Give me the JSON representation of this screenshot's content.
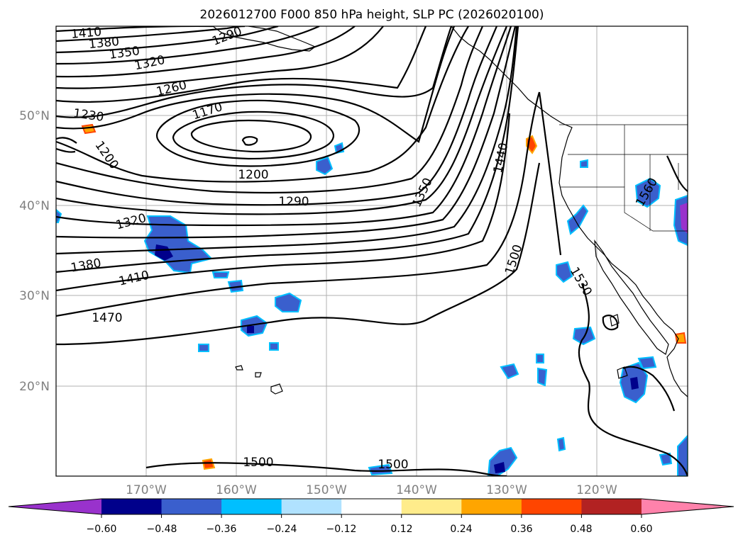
{
  "title": "2026012700 F000 850 hPa height, SLP PC (2026020100)",
  "map": {
    "latitude_labels": [
      "50°N",
      "40°N",
      "30°N",
      "20°N"
    ],
    "longitude_labels": [
      "170°W",
      "160°W",
      "150°W",
      "140°W",
      "130°W",
      "120°W"
    ],
    "contour_labels": [
      "1410",
      "1380",
      "1350",
      "1320",
      "1290",
      "1260",
      "1230",
      "1200",
      "1170",
      "1200",
      "1290",
      "1320",
      "1380",
      "1410",
      "1470",
      "1350",
      "1440",
      "1500",
      "1530",
      "1560",
      "1500",
      "1500"
    ]
  },
  "colorbar": {
    "ticks": [
      "−0.60",
      "−0.48",
      "−0.36",
      "−0.24",
      "−0.12",
      "0.12",
      "0.24",
      "0.36",
      "0.48",
      "0.60"
    ],
    "colors": [
      "#9932cc",
      "#00008b",
      "#3a5fcd",
      "#00bfff",
      "#b0e2ff",
      "#ffffff",
      "#ffec8b",
      "#ffa500",
      "#ff4500",
      "#b22222",
      "#ff82ab"
    ]
  },
  "shading_colors": {
    "strong_negative": "#00008b",
    "negative": "#3a5fcd",
    "weak_negative": "#00bfff",
    "positive": "#ffa500",
    "strong_positive": "#ff4500"
  }
}
